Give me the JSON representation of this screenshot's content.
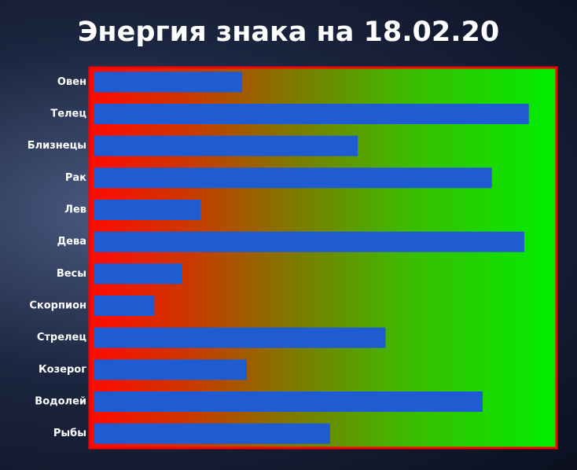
{
  "chart_data": {
    "type": "bar",
    "orientation": "horizontal",
    "title": "Энергия знака на 18.02.20",
    "categories": [
      "Овен",
      "Телец",
      "Близнецы",
      "Рак",
      "Лев",
      "Дева",
      "Весы",
      "Скорпион",
      "Стрелец",
      "Козерог",
      "Водолей",
      "Рыбы"
    ],
    "values": [
      32,
      94,
      57,
      86,
      23,
      93,
      19,
      13,
      63,
      33,
      84,
      51
    ],
    "color": "#1f5bd1",
    "xlim": [
      0,
      100
    ]
  }
}
